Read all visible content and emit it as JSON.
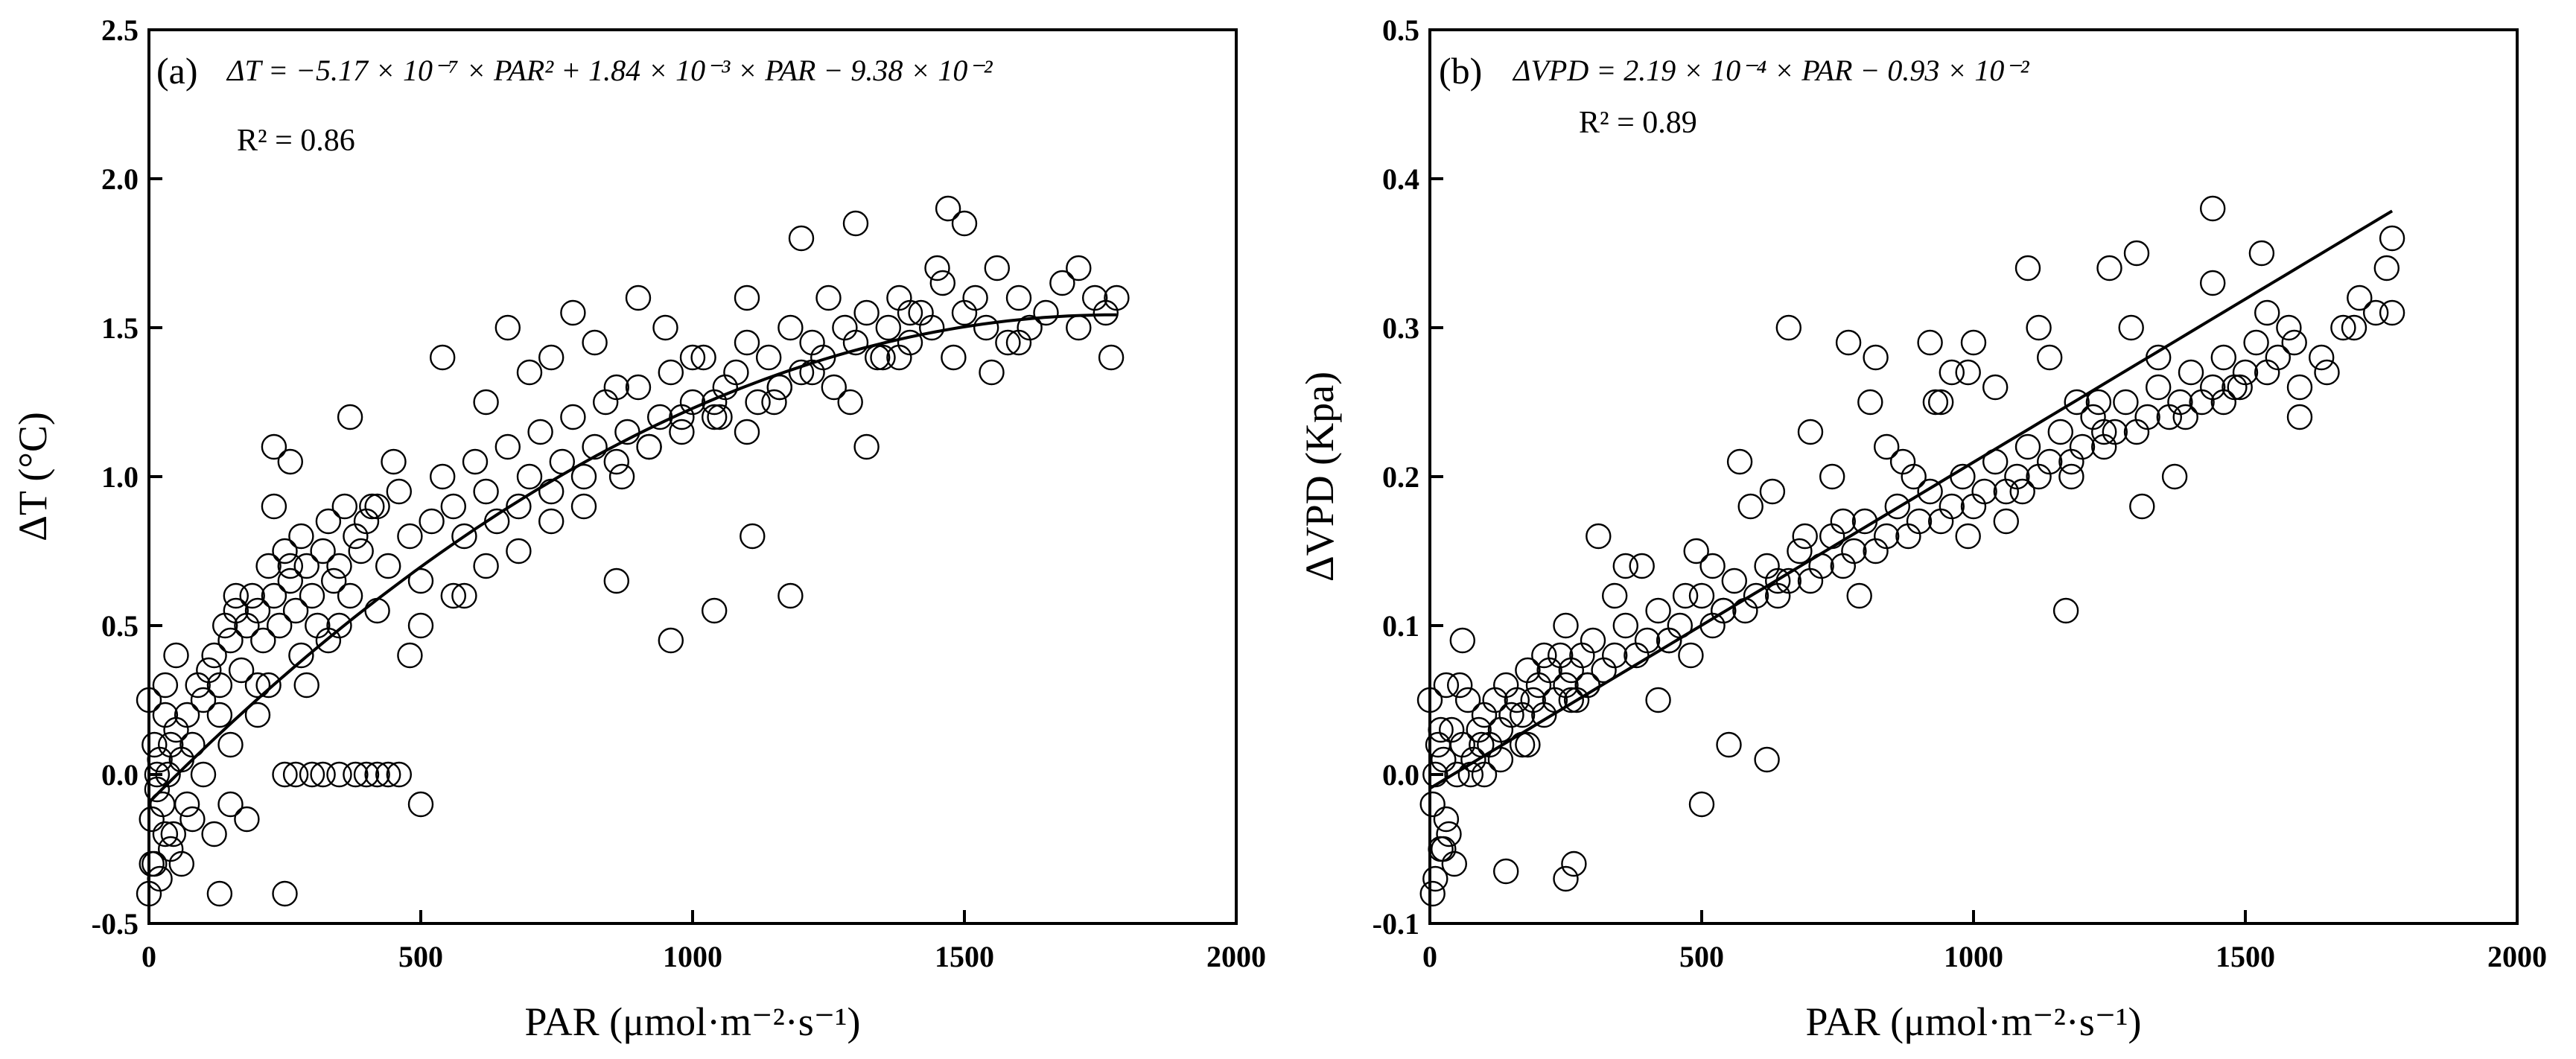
{
  "chart_data": [
    {
      "type": "scatter",
      "panel_label": "(a)",
      "equation": "ΔT = −5.17 × 10⁻⁷ × PAR² + 1.84 × 10⁻³ × PAR − 9.38 × 10⁻²",
      "r2_label": "R² = 0.86",
      "xlabel": "PAR (μmol·m⁻²·s⁻¹)",
      "ylabel": "ΔT (°C)",
      "xlim": [
        0,
        2000
      ],
      "ylim": [
        -0.5,
        2.5
      ],
      "xticks": [
        0,
        500,
        1000,
        1500,
        2000
      ],
      "yticks": [
        -0.5,
        0.0,
        0.5,
        1.0,
        1.5,
        2.0,
        2.5
      ],
      "ytick_labels": [
        "-0.5",
        "0.0",
        "0.5",
        "1.0",
        "1.5",
        "2.0",
        "2.5"
      ],
      "fit": {
        "kind": "quadratic",
        "a": -5.17e-07,
        "b": 0.00184,
        "c": -0.0938,
        "x_range": [
          0,
          1780
        ]
      },
      "series": [
        {
          "name": "observations",
          "x": [
            0,
            5,
            10,
            15,
            20,
            25,
            30,
            35,
            40,
            45,
            50,
            60,
            70,
            80,
            90,
            100,
            110,
            120,
            130,
            140,
            150,
            160,
            170,
            180,
            190,
            200,
            210,
            220,
            230,
            240,
            250,
            260,
            270,
            280,
            290,
            300,
            310,
            320,
            330,
            340,
            350,
            360,
            370,
            380,
            390,
            400,
            420,
            440,
            460,
            480,
            500,
            520,
            540,
            560,
            580,
            600,
            620,
            640,
            660,
            680,
            700,
            720,
            740,
            760,
            780,
            800,
            820,
            840,
            860,
            880,
            900,
            920,
            940,
            960,
            980,
            1000,
            1020,
            1040,
            1060,
            1080,
            1100,
            1120,
            1140,
            1160,
            1180,
            1200,
            1220,
            1240,
            1260,
            1280,
            1300,
            1320,
            1340,
            1360,
            1380,
            1400,
            1420,
            1440,
            1460,
            1480,
            1500,
            1520,
            1540,
            1560,
            1580,
            1600,
            1620,
            1650,
            1680,
            1710,
            1740,
            1760,
            1780,
            5,
            15,
            30,
            50,
            70,
            100,
            130,
            160,
            200,
            230,
            260,
            290,
            330,
            370,
            410,
            450,
            500,
            540,
            580,
            620,
            660,
            700,
            740,
            780,
            820,
            860,
            900,
            950,
            1000,
            1050,
            1100,
            1150,
            1200,
            1250,
            1300,
            1350,
            1400,
            1450,
            1500,
            1550,
            1600,
            250,
            270,
            300,
            320,
            350,
            380,
            400,
            420,
            440,
            460,
            0,
            10,
            20,
            30,
            40,
            60,
            80,
            120,
            150,
            180,
            250,
            500,
            130,
            860,
            960,
            1040,
            1110,
            1180,
            1320,
            1470,
            1710,
            1770,
            230,
            260,
            280,
            150,
            200,
            220,
            350,
            420,
            480,
            560,
            620,
            680,
            740,
            800,
            870,
            920,
            980,
            1040,
            1100,
            1160,
            1220,
            1290,
            1380
          ],
          "y": [
            0.25,
            -0.3,
            0.1,
            0.0,
            0.05,
            -0.1,
            0.2,
            0.0,
            0.1,
            -0.2,
            0.15,
            0.05,
            0.2,
            0.1,
            0.3,
            0.25,
            0.35,
            0.4,
            0.3,
            0.5,
            0.45,
            0.55,
            0.35,
            0.5,
            0.6,
            0.55,
            0.45,
            0.7,
            0.6,
            0.5,
            0.75,
            0.65,
            0.55,
            0.8,
            0.7,
            0.6,
            0.5,
            0.75,
            0.85,
            0.65,
            0.7,
            0.9,
            0.6,
            0.8,
            0.75,
            0.85,
            0.9,
            0.7,
            0.95,
            0.8,
            0.65,
            0.85,
            1.0,
            0.9,
            0.8,
            1.05,
            0.95,
            0.85,
            1.1,
            0.9,
            1.0,
            1.15,
            0.95,
            1.05,
            1.2,
            1.0,
            1.1,
            1.25,
            1.05,
            1.15,
            1.3,
            1.1,
            1.2,
            1.35,
            1.15,
            1.25,
            1.4,
            1.2,
            1.3,
            1.35,
            1.45,
            1.25,
            1.4,
            1.3,
            1.5,
            1.35,
            1.45,
            1.4,
            1.3,
            1.5,
            1.45,
            1.55,
            1.4,
            1.5,
            1.6,
            1.45,
            1.55,
            1.5,
            1.65,
            1.4,
            1.55,
            1.6,
            1.5,
            1.7,
            1.45,
            1.6,
            1.5,
            1.55,
            1.65,
            1.5,
            1.6,
            1.55,
            1.6,
            -0.15,
            -0.05,
            0.3,
            0.4,
            -0.1,
            0.0,
            0.2,
            0.6,
            0.3,
            0.9,
            1.05,
            0.3,
            0.45,
            1.2,
            0.9,
            1.05,
            0.5,
            1.4,
            0.6,
            1.25,
            1.5,
            1.35,
            1.4,
            1.55,
            1.45,
            1.3,
            1.6,
            1.5,
            1.4,
            1.2,
            1.6,
            1.25,
            1.8,
            1.6,
            1.85,
            1.4,
            1.55,
            1.7,
            1.85,
            1.35,
            1.45,
            0.0,
            0.0,
            0.0,
            0.0,
            0.0,
            0.0,
            0.0,
            0.0,
            0.0,
            0.0,
            -0.4,
            -0.3,
            -0.35,
            -0.2,
            -0.25,
            -0.3,
            -0.15,
            -0.2,
            -0.1,
            -0.15,
            -0.4,
            -0.1,
            -0.4,
            0.65,
            0.45,
            0.55,
            0.8,
            0.6,
            1.1,
            1.9,
            1.7,
            1.4,
            1.1,
            0.7,
            0.4,
            0.1,
            0.2,
            0.3,
            0.5,
            0.55,
            0.4,
            0.6,
            0.7,
            0.75,
            0.85,
            0.9,
            1.0,
            1.1,
            1.2,
            1.25,
            1.15,
            1.3,
            1.35,
            1.25,
            1.4
          ]
        }
      ]
    },
    {
      "type": "scatter",
      "panel_label": "(b)",
      "equation": "ΔVPD = 2.19 × 10⁻⁴ × PAR − 0.93 × 10⁻²",
      "r2_label": "R² = 0.89",
      "xlabel": "PAR (μmol·m⁻²·s⁻¹)",
      "ylabel": "ΔVPD (Kpa)",
      "xlim": [
        0,
        2000
      ],
      "ylim": [
        -0.1,
        0.5
      ],
      "xticks": [
        0,
        500,
        1000,
        1500,
        2000
      ],
      "yticks": [
        -0.1,
        0.0,
        0.1,
        0.2,
        0.3,
        0.4,
        0.5
      ],
      "ytick_labels": [
        "-0.1",
        "0.0",
        "0.1",
        "0.2",
        "0.3",
        "0.4",
        "0.5"
      ],
      "fit": {
        "kind": "linear",
        "slope": 0.000219,
        "intercept": -0.0093,
        "x_range": [
          0,
          1770
        ]
      },
      "series": [
        {
          "name": "observations",
          "x": [
            0,
            5,
            10,
            15,
            20,
            25,
            30,
            40,
            50,
            60,
            70,
            80,
            90,
            100,
            110,
            120,
            130,
            140,
            150,
            160,
            170,
            180,
            190,
            200,
            210,
            220,
            230,
            240,
            250,
            260,
            270,
            280,
            290,
            300,
            320,
            340,
            360,
            380,
            400,
            420,
            440,
            460,
            480,
            500,
            520,
            540,
            560,
            580,
            600,
            620,
            640,
            660,
            680,
            700,
            720,
            740,
            760,
            780,
            800,
            820,
            840,
            860,
            880,
            900,
            920,
            940,
            960,
            980,
            1000,
            1020,
            1040,
            1060,
            1080,
            1100,
            1120,
            1140,
            1160,
            1180,
            1200,
            1220,
            1240,
            1260,
            1280,
            1300,
            1320,
            1340,
            1360,
            1380,
            1400,
            1420,
            1440,
            1460,
            1480,
            1500,
            1520,
            1540,
            1560,
            1580,
            1600,
            1640,
            1680,
            1710,
            1740,
            1760,
            1770,
            5,
            20,
            35,
            55,
            75,
            95,
            130,
            170,
            210,
            250,
            290,
            340,
            390,
            440,
            490,
            540,
            590,
            640,
            690,
            740,
            790,
            840,
            890,
            940,
            990,
            1040,
            1090,
            1140,
            1190,
            1240,
            1290,
            1340,
            1390,
            1440,
            1490,
            1540,
            1590,
            10,
            25,
            45,
            140,
            250,
            265,
            500,
            550,
            620,
            660,
            770,
            820,
            920,
            960,
            1000,
            1100,
            1170,
            1250,
            1300,
            1440,
            1530,
            1600,
            1650,
            1700,
            1770,
            30,
            60,
            100,
            180,
            260,
            310,
            360,
            420,
            470,
            520,
            570,
            630,
            700,
            760,
            810,
            870,
            930,
            990,
            1060,
            1120,
            1180,
            1230,
            1310,
            1370,
            1460
          ],
          "y": [
            0.05,
            -0.08,
            0.0,
            0.02,
            -0.05,
            0.01,
            -0.03,
            0.03,
            0.0,
            0.02,
            0.05,
            0.01,
            0.03,
            0.04,
            0.02,
            0.05,
            0.03,
            0.06,
            0.04,
            0.05,
            0.02,
            0.07,
            0.05,
            0.06,
            0.04,
            0.07,
            0.05,
            0.08,
            0.06,
            0.07,
            0.05,
            0.08,
            0.06,
            0.09,
            0.07,
            0.08,
            0.1,
            0.08,
            0.09,
            0.11,
            0.09,
            0.1,
            0.08,
            0.12,
            0.1,
            0.11,
            0.13,
            0.11,
            0.12,
            0.14,
            0.12,
            0.13,
            0.15,
            0.13,
            0.14,
            0.16,
            0.14,
            0.15,
            0.17,
            0.15,
            0.16,
            0.18,
            0.16,
            0.17,
            0.19,
            0.17,
            0.18,
            0.2,
            0.18,
            0.19,
            0.21,
            0.19,
            0.2,
            0.22,
            0.2,
            0.21,
            0.23,
            0.21,
            0.22,
            0.24,
            0.22,
            0.23,
            0.25,
            0.23,
            0.24,
            0.26,
            0.24,
            0.25,
            0.27,
            0.25,
            0.26,
            0.28,
            0.26,
            0.27,
            0.29,
            0.27,
            0.28,
            0.3,
            0.26,
            0.28,
            0.3,
            0.32,
            0.31,
            0.34,
            0.36,
            -0.02,
            0.03,
            -0.04,
            0.06,
            0.0,
            0.02,
            0.01,
            0.04,
            0.08,
            0.1,
            0.06,
            0.12,
            0.14,
            0.09,
            0.15,
            0.11,
            0.18,
            0.13,
            0.16,
            0.2,
            0.12,
            0.22,
            0.2,
            0.25,
            0.16,
            0.26,
            0.19,
            0.28,
            0.25,
            0.23,
            0.3,
            0.28,
            0.24,
            0.33,
            0.26,
            0.31,
            0.29,
            -0.07,
            -0.05,
            -0.06,
            -0.065,
            -0.07,
            -0.06,
            -0.02,
            0.02,
            0.01,
            0.3,
            0.29,
            0.28,
            0.29,
            0.27,
            0.29,
            0.34,
            0.11,
            0.34,
            0.35,
            0.38,
            0.35,
            0.24,
            0.27,
            0.3,
            0.31,
            0.06,
            0.09,
            0.0,
            0.02,
            0.05,
            0.16,
            0.14,
            0.05,
            0.12,
            0.14,
            0.21,
            0.19,
            0.23,
            0.17,
            0.25,
            0.21,
            0.25,
            0.27,
            0.17,
            0.3,
            0.2,
            0.25,
            0.18,
            0.2,
            0.25
          ]
        }
      ]
    }
  ]
}
